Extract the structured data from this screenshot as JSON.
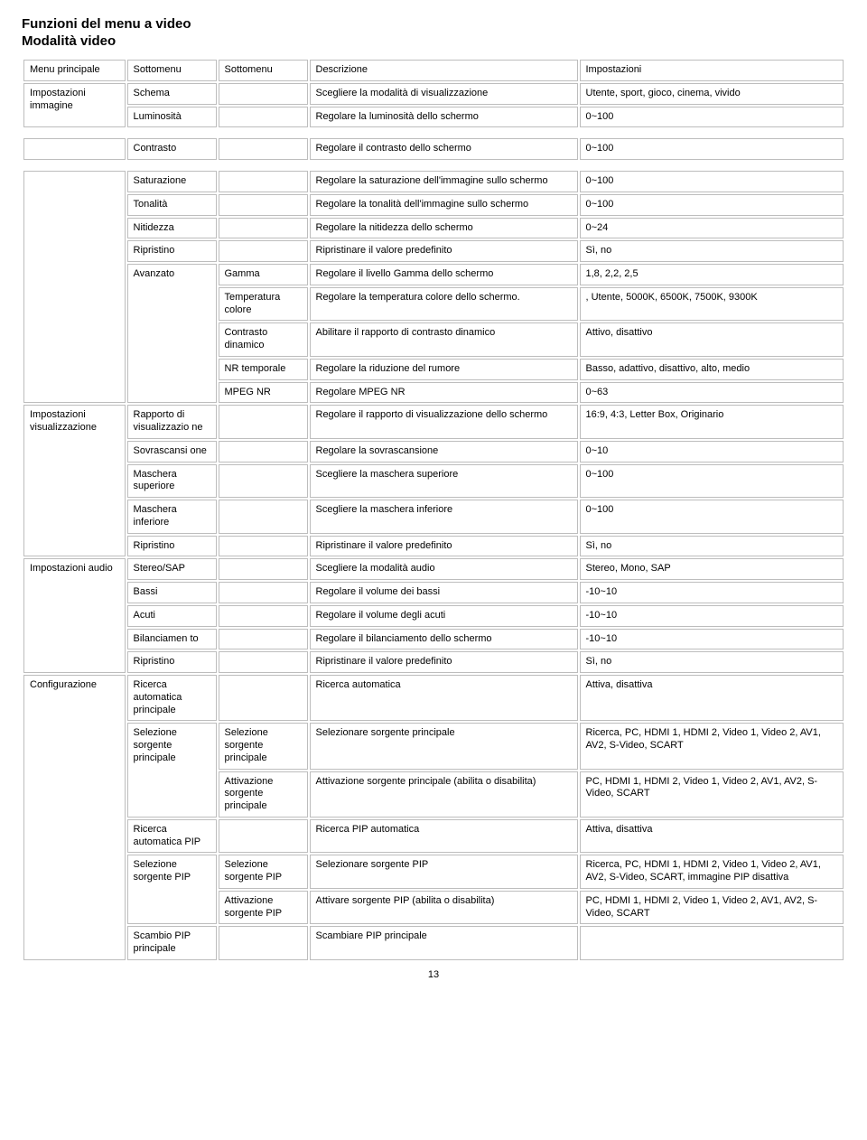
{
  "title1": "Funzioni del menu a video",
  "title2": "Modalità video",
  "hdr": {
    "mp": "Menu principale",
    "sm": "Sottomenu",
    "sm2": "Sottomenu",
    "desc": "Descrizione",
    "set": "Impostazioni"
  },
  "page_num": "13",
  "mp": {
    "img": "Impostazioni immagine",
    "disp": "Impostazioni visualizzazione",
    "audio": "Impostazioni audio",
    "cfg": "Configurazione"
  },
  "img": {
    "schema": {
      "sm": "Schema",
      "desc": "Scegliere la modalità di visualizzazione",
      "set": "Utente, sport, gioco, cinema, vivido"
    },
    "lum": {
      "sm": "Luminosità",
      "desc": "Regolare la luminosità dello schermo",
      "set": "0~100"
    },
    "contr": {
      "sm": "Contrasto",
      "desc": "Regolare il contrasto dello schermo",
      "set": "0~100"
    },
    "sat": {
      "sm": "Saturazione",
      "desc": "Regolare la saturazione dell'immagine sullo schermo",
      "set": "0~100"
    },
    "ton": {
      "sm": "Tonalità",
      "desc": "Regolare la tonalità dell'immagine sullo schermo",
      "set": "0~100"
    },
    "nit": {
      "sm": "Nitidezza",
      "desc": "Regolare la nitidezza dello schermo",
      "set": "0~24"
    },
    "rip": {
      "sm": "Ripristino",
      "desc": "Ripristinare il valore predefinito",
      "set": "Sì, no"
    },
    "adv": {
      "sm": "Avanzato",
      "gamma": {
        "sm2": "Gamma",
        "desc": "Regolare il livello Gamma dello schermo",
        "set": "1,8, 2,2, 2,5"
      },
      "temp": {
        "sm2": "Temperatura colore",
        "desc": "Regolare la temperatura colore dello schermo.",
        "set": ", Utente, 5000K, 6500K, 7500K, 9300K"
      },
      "dcr": {
        "sm2": "Contrasto dinamico",
        "desc": "Abilitare il rapporto di contrasto dinamico",
        "set": "Attivo, disattivo"
      },
      "nrt": {
        "sm2": "NR temporale",
        "desc": "Regolare la riduzione del rumore",
        "set": "Basso, adattivo, disattivo, alto, medio"
      },
      "mpeg": {
        "sm2": "MPEG NR",
        "desc": "Regolare MPEG NR",
        "set": "0~63"
      }
    }
  },
  "disp": {
    "ratio": {
      "sm": "Rapporto di visualizzazio ne",
      "desc": "Regolare il rapporto di visualizzazione dello schermo",
      "set": "16:9, 4:3, Letter Box, Originario"
    },
    "over": {
      "sm": "Sovrascansi one",
      "desc": "Regolare la sovrascansione",
      "set": "0~10"
    },
    "msup": {
      "sm": "Maschera superiore",
      "desc": "Scegliere la maschera superiore",
      "set": "0~100"
    },
    "minf": {
      "sm": "Maschera inferiore",
      "desc": "Scegliere la maschera inferiore",
      "set": "0~100"
    },
    "rip": {
      "sm": "Ripristino",
      "desc": "Ripristinare il valore predefinito",
      "set": "Sì, no"
    }
  },
  "audio": {
    "s": {
      "sm": "Stereo/SAP",
      "desc": "Scegliere la modalità audio",
      "set": "Stereo, Mono, SAP"
    },
    "b": {
      "sm": "Bassi",
      "desc": "Regolare il volume dei bassi",
      "set": "-10~10"
    },
    "a": {
      "sm": "Acuti",
      "desc": "Regolare il volume degli acuti",
      "set": "-10~10"
    },
    "bal": {
      "sm": "Bilanciamen to",
      "desc": "Regolare il bilanciamento dello schermo",
      "set": "-10~10"
    },
    "rip": {
      "sm": "Ripristino",
      "desc": "Ripristinare il valore predefinito",
      "set": "Sì, no"
    }
  },
  "cfg": {
    "rauto": {
      "sm": "Ricerca automatica principale",
      "desc": "Ricerca automatica",
      "set": "Attiva, disattiva"
    },
    "ssp": {
      "sm": "Selezione sorgente principale",
      "sel": {
        "sm2": "Selezione sorgente principale",
        "desc": "Selezionare sorgente principale",
        "set": "Ricerca, PC, HDMI 1, HDMI 2, Video 1, Video 2, AV1, AV2, S-Video, SCART"
      },
      "act": {
        "sm2": "Attivazione sorgente principale",
        "desc": "Attivazione sorgente principale (abilita o disabilita)",
        "set": "PC, HDMI 1, HDMI 2, Video 1, Video 2, AV1, AV2, S-Video, SCART"
      }
    },
    "rpip": {
      "sm": "Ricerca automatica PIP",
      "desc": "Ricerca PIP automatica",
      "set": "Attiva, disattiva"
    },
    "ssppip": {
      "sm": "Selezione sorgente PIP",
      "sel": {
        "sm2": "Selezione sorgente PIP",
        "desc": "Selezionare sorgente PIP",
        "set": "Ricerca, PC, HDMI 1, HDMI 2, Video 1, Video 2, AV1, AV2, S-Video, SCART, immagine PIP disattiva"
      },
      "act": {
        "sm2": "Attivazione sorgente PIP",
        "desc": "Attivare sorgente PIP (abilita o disabilita)",
        "set": "PC, HDMI 1, HDMI 2, Video 1, Video 2, AV1, AV2, S-Video, SCART"
      }
    },
    "swap": {
      "sm": "Scambio PIP principale",
      "desc": "Scambiare PIP principale"
    }
  }
}
